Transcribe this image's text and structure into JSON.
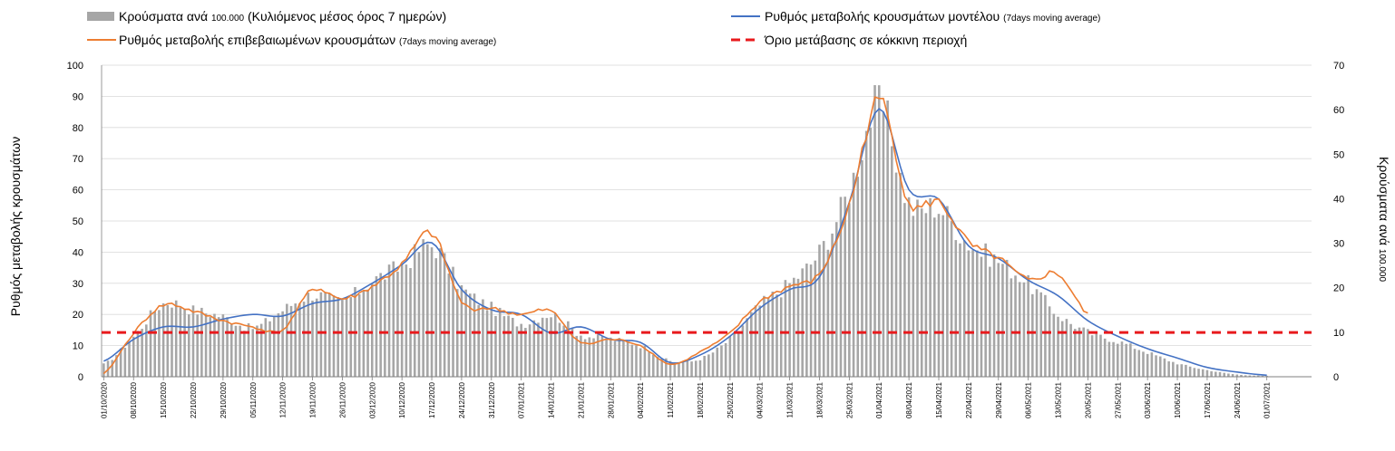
{
  "chart_data": {
    "type": "bar+line",
    "legend": [
      {
        "label": "Κρούσματα ανά ",
        "small": "100.000",
        "label2": " (Κυλιόμενος μέσος όρος 7 ημερών)",
        "kind": "bar",
        "color": "#a6a6a6"
      },
      {
        "label": "Ρυθμός μεταβολής κρουσμάτων μοντέλου ",
        "small": "(7days moving average)",
        "label2": "",
        "kind": "line",
        "color": "#4472c4"
      },
      {
        "label": "Ρυθμός μεταβολής επιβεβαιωμένων κρουσμάτων ",
        "small": "(7days moving average)",
        "label2": "",
        "kind": "line",
        "color": "#ed7d31"
      },
      {
        "label": "Όριο μετάβασης σε κόκκινη περιοχή",
        "small": "",
        "label2": "",
        "kind": "dashed",
        "color": "#e8191c"
      }
    ],
    "ylabel_left": "Ρυθμός μεταβολής κρουσμάτων",
    "ylabel_right_main": "Κρούσματα ανά ",
    "ylabel_right_small": "100.000",
    "ylim_left": [
      0,
      100
    ],
    "yticks_left": [
      "0",
      "10",
      "20",
      "30",
      "40",
      "50",
      "60",
      "70",
      "80",
      "90",
      "100"
    ],
    "ylim_right": [
      0,
      70
    ],
    "yticks_right": [
      "0",
      "10",
      "20",
      "30",
      "40",
      "50",
      "60",
      "70"
    ],
    "x_tick_labels": [
      "01/10/2020",
      "08/10/2020",
      "15/10/2020",
      "22/10/2020",
      "29/10/2020",
      "05/11/2020",
      "12/11/2020",
      "19/11/2020",
      "26/11/2020",
      "03/12/2020",
      "10/12/2020",
      "17/12/2020",
      "24/12/2020",
      "31/12/2020",
      "07/01/2021",
      "14/01/2021",
      "21/01/2021",
      "28/01/2021",
      "04/02/2021",
      "11/02/2021",
      "18/02/2021",
      "25/02/2021",
      "04/03/2021",
      "11/03/2021",
      "18/03/2021",
      "25/03/2021",
      "01/04/2021",
      "08/04/2021",
      "15/04/2021",
      "22/04/2021",
      "29/04/2021",
      "06/05/2021",
      "13/05/2021",
      "20/05/2021",
      "27/05/2021",
      "03/06/2021",
      "10/06/2021",
      "17/06/2021",
      "24/06/2021",
      "01/07/2021"
    ],
    "threshold_left_value": 14.2,
    "bars_right_axis_weekly": [
      2.8,
      9.0,
      16.5,
      15.0,
      13.5,
      11.0,
      15.0,
      18.5,
      17.0,
      21.5,
      25.0,
      29.5,
      20.0,
      15.5,
      12.0,
      14.0,
      9.5,
      8.5,
      7.0,
      3.5,
      4.0,
      8.5,
      16.0,
      21.0,
      28.0,
      42.0,
      61.0,
      39.0,
      38.0,
      30.0,
      26.0,
      21.0,
      14.0,
      10.0,
      8.0,
      5.5,
      3.0,
      1.5,
      0.5,
      0.2
    ],
    "model_rate_weekly": [
      5,
      12,
      16,
      16,
      18.5,
      20,
      19.5,
      23.5,
      25,
      30,
      36,
      43,
      28,
      21.5,
      20,
      14,
      16,
      12,
      11,
      4.5,
      7,
      13,
      22,
      28,
      32,
      56,
      86,
      60,
      57,
      42,
      38,
      31,
      26,
      18,
      13,
      9,
      6,
      3,
      1.5,
      0.5
    ],
    "confirmed_rate_weekly": [
      1,
      14,
      23,
      21,
      18,
      16,
      15,
      28,
      25,
      29,
      36,
      46,
      24,
      22,
      20,
      21,
      11,
      12,
      10,
      4,
      8,
      14,
      24,
      29,
      33,
      55,
      89,
      56,
      56,
      43,
      38,
      31,
      33,
      20
    ]
  }
}
